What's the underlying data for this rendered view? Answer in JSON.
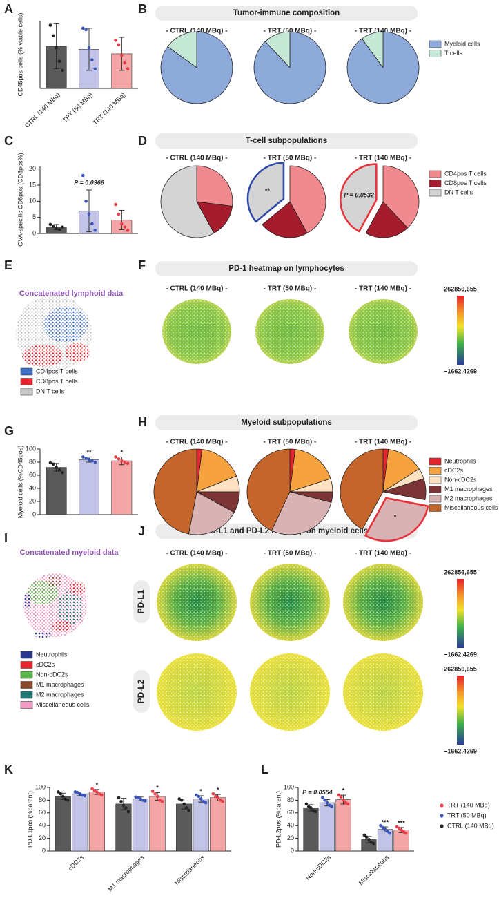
{
  "panel_labels": [
    "A",
    "B",
    "C",
    "D",
    "E",
    "F",
    "G",
    "H",
    "I",
    "J",
    "K",
    "L"
  ],
  "chart_data": [
    {
      "type": "bar",
      "ylabel": "CD45pos cells (% viable cells)",
      "categories": [
        "CTRL (140 MBq)",
        "TRT (50 MBq)",
        "TRT (140 MBq)"
      ],
      "ylim": [
        0,
        45
      ],
      "series": [
        {
          "colors": [
            "#5a5a5a",
            "#c3c3e8",
            "#f4a6a6"
          ],
          "dot_colors": [
            "#222222",
            "#3a55b8",
            "#e8404a"
          ],
          "values": [
            28,
            26,
            23
          ],
          "errors": [
            15,
            14,
            11
          ],
          "points": [
            [
              42,
              35,
              27,
              18,
              12
            ],
            [
              40,
              39,
              27,
              19,
              13
            ],
            [
              32,
              29,
              22,
              17,
              13
            ]
          ]
        }
      ]
    },
    {
      "type": "pie",
      "title": "Tumor-immune composition",
      "categories": [
        "Myeloid cells",
        "T cells"
      ],
      "colors": [
        "#8eaadb",
        "#c5e7d6"
      ],
      "pies": [
        {
          "label": "- CTRL (140 MBq) -",
          "label_color": "#222222",
          "values": [
            85,
            15
          ]
        },
        {
          "label": "- TRT (50 MBq) -",
          "label_color": "#2f49a8",
          "values": [
            88,
            12
          ]
        },
        {
          "label": "- TRT (140 MBq) -",
          "label_color": "#e8323c",
          "values": [
            90,
            10
          ]
        }
      ]
    },
    {
      "type": "bar",
      "ylabel": "OVA-specific CD8pos (CD8pos%)",
      "categories": [
        null,
        null,
        null
      ],
      "ylim": [
        0,
        21
      ],
      "yticks": [
        0,
        5,
        10,
        15,
        20
      ],
      "series": [
        {
          "colors": [
            "#5a5a5a",
            "#c3c3e8",
            "#f4a6a6"
          ],
          "dot_colors": [
            "#222222",
            "#3a55b8",
            "#e8404a"
          ],
          "values": [
            2,
            7,
            4.2
          ],
          "errors": [
            0.8,
            6.5,
            3
          ],
          "points": [
            [
              2.8,
              2.2,
              1.5,
              1.2,
              2
            ],
            [
              18,
              10,
              6,
              3,
              1
            ],
            [
              9,
              6,
              3,
              2,
              1
            ]
          ],
          "stars": [
            null,
            "P = 0.0966",
            null
          ]
        }
      ]
    },
    {
      "type": "pie",
      "title": "T-cell subpopulations",
      "categories": [
        "CD4pos T cells",
        "CD8pos T cells",
        "DN T cells"
      ],
      "colors": [
        "#f08a8e",
        "#a51d2d",
        "#d4d4d4"
      ],
      "pies": [
        {
          "label": "- CTRL (140 MBq) -",
          "label_color": "#222222",
          "values": [
            27,
            15,
            58
          ]
        },
        {
          "label": "- TRT (50 MBq) -",
          "label_color": "#2f49a8",
          "values": [
            42,
            22,
            36
          ],
          "exploded": 2,
          "outline": "#2f49a8",
          "annotation": "**"
        },
        {
          "label": "- TRT (140 MBq) -",
          "label_color": "#e8323c",
          "values": [
            38,
            20,
            42
          ],
          "exploded": 2,
          "outline": "#e8323c",
          "annotation": "P = 0.0532"
        }
      ]
    },
    {
      "type": "bar",
      "ylabel": "Myeloid cells (%CD45pos)",
      "categories": [
        null,
        null,
        null
      ],
      "ylim": [
        0,
        100
      ],
      "yticks": [
        0,
        20,
        40,
        60,
        80,
        100
      ],
      "series": [
        {
          "colors": [
            "#5a5a5a",
            "#c3c3e8",
            "#f4a6a6"
          ],
          "dot_colors": [
            "#222222",
            "#3a55b8",
            "#e8404a"
          ],
          "values": [
            72,
            84,
            82
          ],
          "errors": [
            6,
            4,
            6
          ],
          "points": [
            [
              79,
              77,
              72,
              68,
              64
            ],
            [
              88,
              86,
              84,
              82,
              80
            ],
            [
              88,
              85,
              82,
              80,
              78
            ]
          ],
          "stars": [
            null,
            "**",
            "*"
          ]
        }
      ]
    },
    {
      "type": "pie",
      "title": "Myeloid subpopulations",
      "categories": [
        "Neutrophils",
        "cDC2s",
        "Non-cDC2s",
        "M1 macrophages",
        "M2 macrophages",
        "Miscellaneous cells"
      ],
      "colors": [
        "#e3262d",
        "#f6a23f",
        "#fde1c2",
        "#7d3434",
        "#d9b3b3",
        "#c4662c"
      ],
      "pies": [
        {
          "label": "- CTRL (140 MBq) -",
          "label_color": "#222222",
          "values": [
            2,
            17,
            6,
            8,
            20,
            47
          ]
        },
        {
          "label": "- TRT (50 MBq) -",
          "label_color": "#2f49a8",
          "values": [
            2,
            18,
            5,
            4,
            28,
            43
          ]
        },
        {
          "label": "- TRT (140 MBq) -",
          "label_color": "#e8323c",
          "values": [
            2,
            14,
            4,
            8,
            30,
            42
          ],
          "exploded": 4,
          "outline": "#e8323c",
          "annotation": "*"
        }
      ]
    },
    {
      "type": "bar",
      "ylabel": "PD-L1pos (%parent)",
      "categories": [
        "cDC2s",
        "M1 macrophages",
        "Miscellaneous"
      ],
      "ylim": [
        0,
        100
      ],
      "yticks": [
        0,
        20,
        40,
        60,
        80,
        100
      ],
      "series": [
        {
          "color": "#5a5a5a",
          "dot_color": "#222222",
          "values": [
            86,
            74,
            74
          ],
          "errors": [
            5,
            9,
            8
          ],
          "points": [
            [
              93,
              90,
              86,
              82,
              80
            ],
            [
              84,
              78,
              72,
              68,
              62
            ],
            [
              82,
              80,
              74,
              68,
              64
            ]
          ]
        },
        {
          "color": "#c3c3e8",
          "dot_color": "#3a55b8",
          "values": [
            90,
            82,
            82
          ],
          "errors": [
            3,
            3,
            5
          ],
          "points": [
            [
              93,
              92,
              90,
              88,
              87
            ],
            [
              85,
              84,
              82,
              80,
              79
            ],
            [
              88,
              86,
              82,
              78,
              76
            ]
          ],
          "stars": [
            null,
            null,
            "*"
          ]
        },
        {
          "color": "#f4a6a6",
          "dot_color": "#e8404a",
          "values": [
            93,
            86,
            84
          ],
          "errors": [
            4,
            6,
            5
          ],
          "points": [
            [
              98,
              95,
              93,
              90,
              88
            ],
            [
              94,
              90,
              86,
              80,
              78
            ],
            [
              90,
              86,
              84,
              80,
              78
            ]
          ],
          "stars": [
            "*",
            "*",
            "*"
          ]
        }
      ]
    },
    {
      "type": "bar",
      "ylabel": "PD-L2pos (%parent)",
      "categories": [
        "Non-cDC2s",
        "Miscellaneous"
      ],
      "ylim": [
        0,
        100
      ],
      "yticks": [
        0,
        20,
        40,
        60,
        80,
        100
      ],
      "series": [
        {
          "name": "CTRL (140 MBq)",
          "color": "#5a5a5a",
          "dot_color": "#222222",
          "values": [
            68,
            18
          ],
          "errors": [
            5,
            5
          ],
          "points": [
            [
              74,
              70,
              68,
              64,
              62
            ],
            [
              25,
              22,
              18,
              14,
              12
            ]
          ]
        },
        {
          "name": "TRT (50 MBq)",
          "color": "#c3c3e8",
          "dot_color": "#3a55b8",
          "values": [
            76,
            34
          ],
          "errors": [
            5,
            4
          ],
          "points": [
            [
              84,
              80,
              76,
              72,
              70
            ],
            [
              40,
              37,
              34,
              31,
              28
            ]
          ],
          "stars": [
            "P = 0.0554",
            "***"
          ]
        },
        {
          "name": "TRT (140 MBq)",
          "color": "#f4a6a6",
          "dot_color": "#e8404a",
          "values": [
            81,
            33
          ],
          "errors": [
            7,
            4
          ],
          "points": [
            [
              88,
              85,
              80,
              76,
              74
            ],
            [
              38,
              36,
              33,
              30,
              28
            ]
          ],
          "stars": [
            "*",
            "***"
          ]
        }
      ]
    }
  ],
  "tsne_plots": [
    {
      "title": "Concatenated lymphoid data",
      "legend": [
        {
          "name": "CD4pos T cells",
          "color": "#3d6fc4"
        },
        {
          "name": "CD8pos T cells",
          "color": "#e8222a"
        },
        {
          "name": "DN T cells",
          "color": "#c8c8c8"
        }
      ]
    },
    {
      "title": "Concatenated myeloid data",
      "legend": [
        {
          "name": "Neutrophils",
          "color": "#26358f"
        },
        {
          "name": "cDC2s",
          "color": "#e8222a"
        },
        {
          "name": "Non-cDC2s",
          "color": "#5ab848"
        },
        {
          "name": "M1 macrophages",
          "color": "#8a4a2a"
        },
        {
          "name": "M2 macrophages",
          "color": "#1f7a78"
        },
        {
          "name": "Miscellaneous cells",
          "color": "#f29ac4"
        }
      ]
    }
  ],
  "heatmaps": [
    {
      "title": "PD-1 heatmap on lymphocytes",
      "columns": [
        "- CTRL (140 MBq) -",
        "- TRT (50 MBq) -",
        "- TRT (140 MBq) -"
      ],
      "scale_labels": [
        "262856,655",
        "−1662,4269"
      ]
    },
    {
      "title": "PD-L1 and PD-L2 heatmap on myeloid cells",
      "columns": [
        "- CTRL (140 MBq) -",
        "- TRT (50 MBq) -",
        "- TRT (140 MBq) -"
      ],
      "rows": [
        "PD-L1",
        "PD-L2"
      ],
      "scale_labels": [
        "262856,655",
        "−1662,4269"
      ]
    }
  ]
}
